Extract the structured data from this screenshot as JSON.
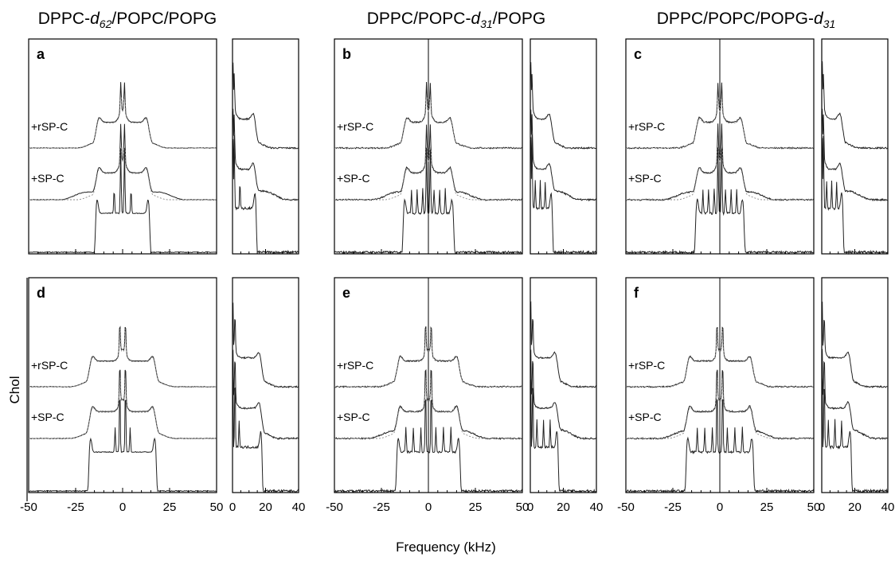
{
  "chart_data": {
    "type": "line",
    "xlabel": "Frequency (kHz)",
    "row_label": "Chol",
    "column_titles": [
      {
        "base_a": "DPPC-",
        "sub_a": "d",
        "sub_b": "62",
        "rest": "/POPC/POPG"
      },
      {
        "base_a": "DPPC/POPC-",
        "sub_a": "d",
        "sub_b": "31",
        "rest": "/POPG"
      },
      {
        "base_a": "DPPC/POPC/POPG-",
        "sub_a": "d",
        "sub_b": "31",
        "rest": ""
      }
    ],
    "main_xlim": [
      -50,
      50
    ],
    "main_xticks": [
      "-50",
      "-25",
      "0",
      "25",
      "50"
    ],
    "side_xlim": [
      0,
      40
    ],
    "side_xticks": [
      "0",
      "20",
      "40"
    ],
    "trace_labels": [
      "+rSP-C",
      "+SP-C"
    ],
    "panels": [
      {
        "label": "a",
        "row": 0,
        "col": 0,
        "quad_edge_kHz": 14.5,
        "sp_c_shoulder_kHz": 25,
        "peaks_kHz": [
          1,
          4.5
        ]
      },
      {
        "label": "b",
        "row": 0,
        "col": 1,
        "quad_edge_kHz": 13.5,
        "sp_c_shoulder_kHz": 22,
        "peaks_kHz": [
          1,
          3,
          6,
          9
        ]
      },
      {
        "label": "c",
        "row": 0,
        "col": 2,
        "quad_edge_kHz": 13,
        "sp_c_shoulder_kHz": 22,
        "peaks_kHz": [
          1,
          3,
          6,
          9
        ]
      },
      {
        "label": "d",
        "row": 1,
        "col": 0,
        "quad_edge_kHz": 18,
        "sp_c_shoulder_kHz": 20,
        "peaks_kHz": [
          1.5,
          4
        ]
      },
      {
        "label": "e",
        "row": 1,
        "col": 1,
        "quad_edge_kHz": 17,
        "sp_c_shoulder_kHz": 24,
        "peaks_kHz": [
          1.5,
          4,
          8,
          12
        ]
      },
      {
        "label": "f",
        "row": 1,
        "col": 2,
        "quad_edge_kHz": 18,
        "sp_c_shoulder_kHz": 24,
        "peaks_kHz": [
          1.5,
          4,
          8,
          12
        ]
      }
    ]
  }
}
